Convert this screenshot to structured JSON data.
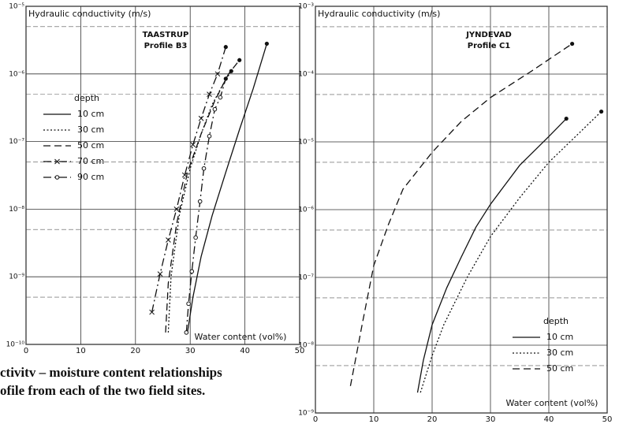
{
  "chart_data": [
    {
      "type": "line",
      "title": "Hydraulic conductivity (m/s)",
      "site": "TAASTRUP",
      "profile": "Profile B3",
      "xlabel": "Water content (vol%)",
      "legend_title": "depth",
      "legend": "upper left",
      "log_y": true,
      "xlim": [
        0,
        50
      ],
      "xticks": [
        0,
        10,
        20,
        30,
        40,
        50
      ],
      "ylim": [
        1e-10,
        1e-05
      ],
      "yticks": [
        {
          "value": 1e-10,
          "label": "10⁻¹⁰"
        },
        {
          "value": 1e-09,
          "label": "10⁻⁹"
        },
        {
          "value": 1e-08,
          "label": "10⁻⁸"
        },
        {
          "value": 1e-07,
          "label": "10⁻⁷"
        },
        {
          "value": 1e-06,
          "label": "10⁻⁶"
        },
        {
          "value": 1e-05,
          "label": "10⁻⁵"
        }
      ],
      "minor_grid": [
        5e-10,
        5e-09,
        5e-08,
        5e-07,
        5e-06
      ],
      "series": [
        {
          "name": "10 cm",
          "color": "#111",
          "style": "solid",
          "marker": null,
          "x": [
            29.5,
            30.5,
            32,
            34,
            36.5,
            39,
            41.5,
            44
          ],
          "values": [
            1.5e-10,
            5e-10,
            2e-09,
            8e-09,
            3.5e-08,
            1.5e-07,
            6e-07,
            2.8e-06
          ]
        },
        {
          "name": "30 cm",
          "color": "#111",
          "style": "dotted",
          "marker": null,
          "x": [
            26,
            26.5,
            28,
            30,
            32,
            34,
            36,
            37.5
          ],
          "values": [
            1.5e-10,
            1e-09,
            8e-09,
            4e-08,
            1.3e-07,
            3.5e-07,
            7e-07,
            1.1e-06
          ]
        },
        {
          "name": "50 cm",
          "color": "#111",
          "style": "dashed",
          "marker": null,
          "x": [
            25.5,
            26,
            27.5,
            29.5,
            32,
            34.5,
            37,
            39
          ],
          "values": [
            1.5e-10,
            8e-10,
            6e-09,
            3.5e-08,
            1.3e-07,
            4e-07,
            1e-06,
            1.6e-06
          ]
        },
        {
          "name": "70 cm",
          "color": "#111",
          "style": "dashdot",
          "marker": "x",
          "x": [
            23,
            24.5,
            26,
            27.5,
            29,
            30.5,
            32,
            33.5,
            35,
            36.5
          ],
          "values": [
            3e-10,
            1.1e-09,
            3.5e-09,
            1e-08,
            3.2e-08,
            9e-08,
            2.2e-07,
            5e-07,
            1e-06,
            2.5e-06
          ]
        },
        {
          "name": "90 cm",
          "color": "#111",
          "style": "dashdot",
          "marker": "o",
          "x": [
            29.3,
            29.7,
            30.3,
            31,
            31.8,
            32.5,
            33.5,
            34.5,
            35.5,
            36.5
          ],
          "values": [
            1.5e-10,
            4e-10,
            1.2e-09,
            3.8e-09,
            1.3e-08,
            4e-08,
            1.2e-07,
            3e-07,
            4.5e-07,
            8.5e-07
          ]
        }
      ]
    },
    {
      "type": "line",
      "title": "Hydraulic conductivity (m/s)",
      "site": "JYNDEVAD",
      "profile": "Profile C1",
      "xlabel": "Water content (vol%)",
      "legend_title": "depth",
      "legend": "lower right",
      "log_y": true,
      "xlim": [
        0,
        50
      ],
      "xticks": [
        0,
        10,
        20,
        30,
        40,
        50
      ],
      "ylim": [
        1e-09,
        0.001
      ],
      "yticks": [
        {
          "value": 1e-09,
          "label": "10⁻⁹"
        },
        {
          "value": 1e-08,
          "label": "10⁻⁸"
        },
        {
          "value": 1e-07,
          "label": "10⁻⁷"
        },
        {
          "value": 1e-06,
          "label": "10⁻⁶"
        },
        {
          "value": 1e-05,
          "label": "10⁻⁵"
        },
        {
          "value": 0.0001,
          "label": "10⁻⁴"
        },
        {
          "value": 0.001,
          "label": "10⁻³"
        }
      ],
      "minor_grid": [
        5e-09,
        5e-08,
        5e-07,
        5e-06,
        5e-05,
        0.0005
      ],
      "series": [
        {
          "name": "10 cm",
          "color": "#111",
          "style": "solid",
          "marker": null,
          "x": [
            17.5,
            18.5,
            20,
            22.5,
            25,
            27.5,
            30,
            35,
            40,
            43
          ],
          "values": [
            2e-09,
            6e-09,
            2e-08,
            7e-08,
            2e-07,
            5.5e-07,
            1.2e-06,
            4.5e-06,
            1.2e-05,
            2.2e-05
          ]
        },
        {
          "name": "30 cm",
          "color": "#111",
          "style": "dotted",
          "marker": null,
          "x": [
            18,
            20,
            22,
            26,
            30,
            35,
            40,
            45,
            49
          ],
          "values": [
            2e-09,
            7e-09,
            2e-08,
            1e-07,
            4e-07,
            1.5e-06,
            5e-06,
            1.3e-05,
            2.8e-05
          ]
        },
        {
          "name": "50 cm",
          "color": "#111",
          "style": "dashed",
          "marker": null,
          "x": [
            6,
            7,
            8,
            10,
            12.5,
            15,
            20,
            25,
            30,
            37,
            44
          ],
          "values": [
            2.5e-09,
            7e-09,
            2e-08,
            1.5e-07,
            6e-07,
            2e-06,
            7e-06,
            2e-05,
            4.5e-05,
            0.00011,
            0.00028
          ]
        }
      ]
    }
  ],
  "caption": [
    "ctivitv – moisture content relationships",
    "ofile from each of the two field sites."
  ]
}
